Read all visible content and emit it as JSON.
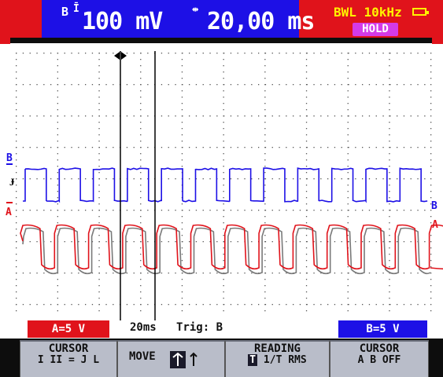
{
  "header": {
    "channel_label": "B",
    "channel_value": "100 mV",
    "timebase_value": "20,00 ms",
    "bandwidth_limit": "BWL 10kHz",
    "hold_label": "HOLD"
  },
  "scope": {
    "channel_b_marker": "B",
    "channel_a_marker": "A",
    "trigger_marker": "T",
    "channel_b_color": "#1d10e6",
    "channel_a_color": "#e0131b",
    "trace_gray_color": "#7a7a7a",
    "cursor_icon": "cursor-pair-icon"
  },
  "bottom_bar": {
    "channel_a_scale": "A=5 V",
    "timebase": "20ms",
    "trigger": "Trig: B",
    "channel_b_scale": "B=5 V"
  },
  "soft_keys": [
    {
      "title": "CURSOR",
      "sub": "I II = J L"
    },
    {
      "title": "MOVE",
      "sub": ""
    },
    {
      "title": "READING",
      "sub": "1/T RMS"
    },
    {
      "title": "CURSOR",
      "sub": "A B OFF"
    }
  ],
  "colors": {
    "red": "#e0131b",
    "blue": "#1d10e6",
    "hold_magenta": "#d43ae8",
    "bwl_yellow": "#fff300",
    "softkey_gray": "#b9bdc9"
  }
}
